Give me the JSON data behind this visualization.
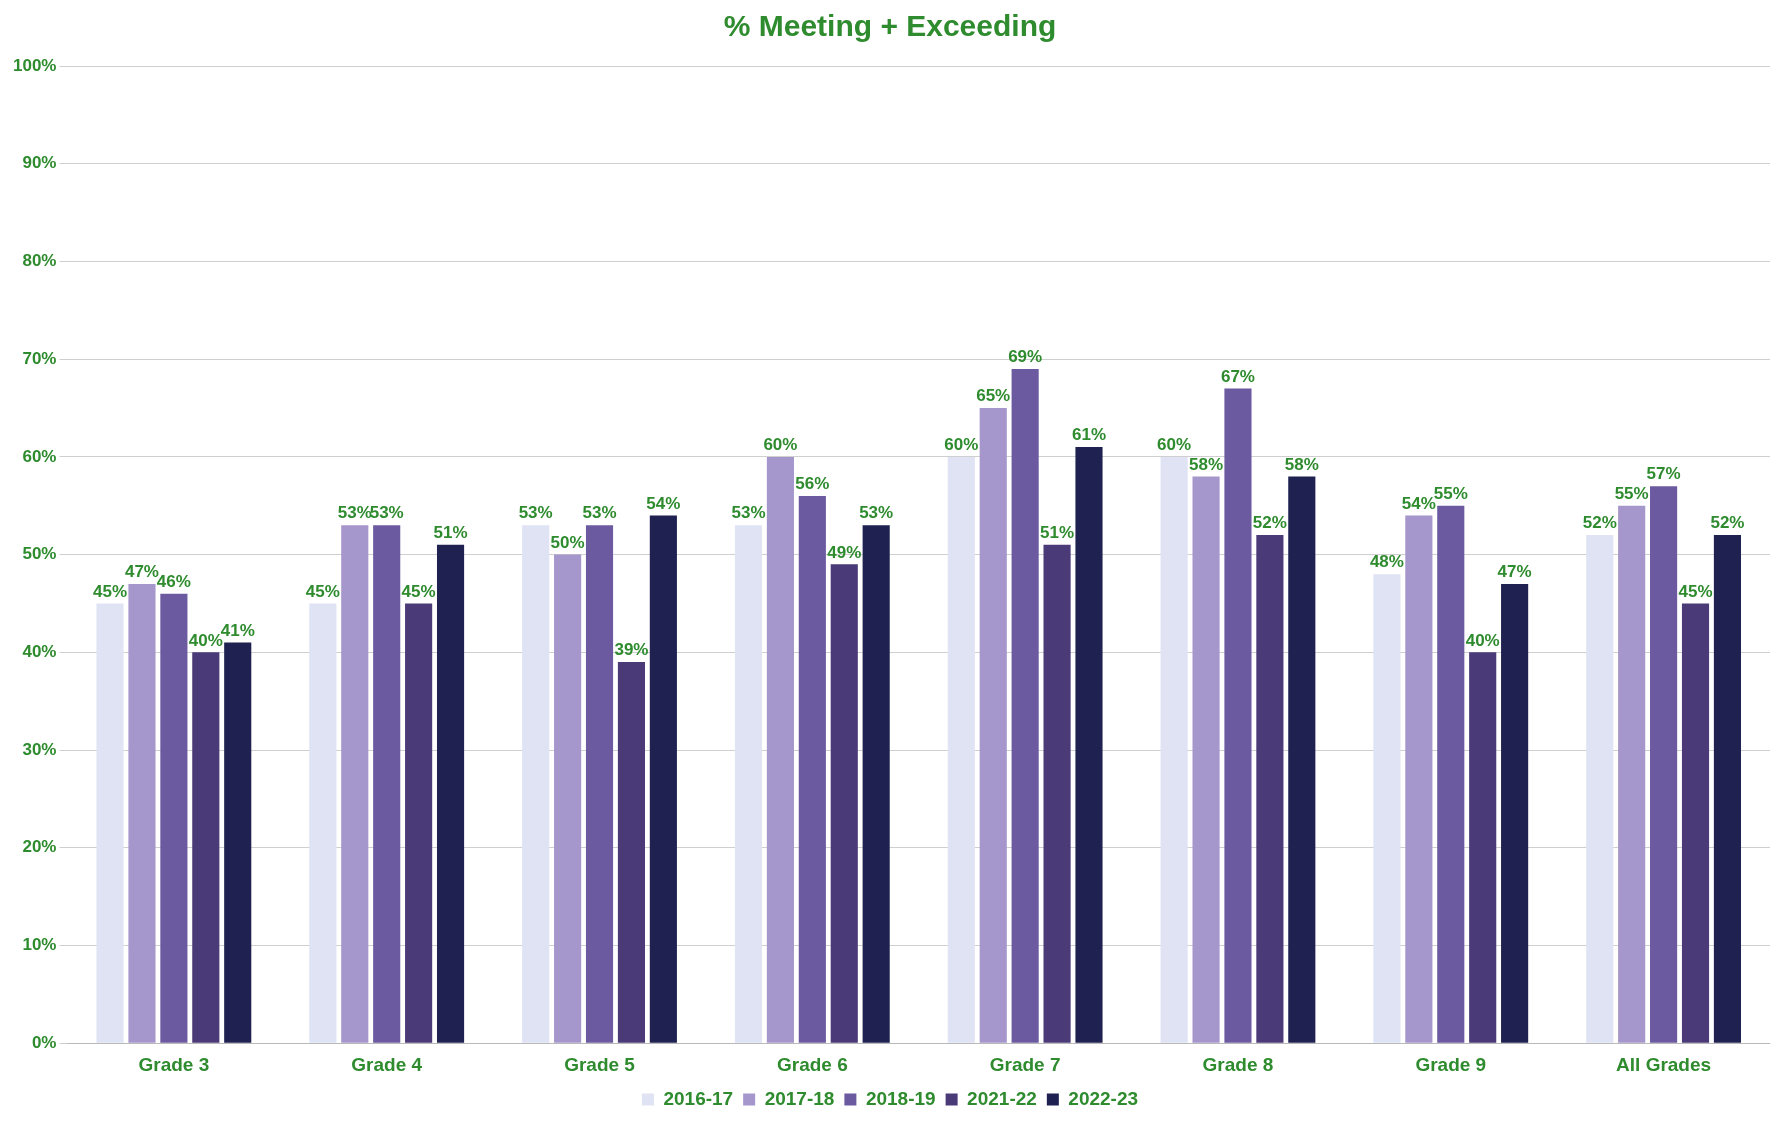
{
  "chart_data": {
    "type": "bar",
    "title": "% Meeting + Exceeding",
    "categories": [
      "Grade 3",
      "Grade 4",
      "Grade 5",
      "Grade 6",
      "Grade 7",
      "Grade 8",
      "Grade 9",
      "All Grades"
    ],
    "series": [
      {
        "name": "2016-17",
        "color": "#dfe3f3",
        "values": [
          45,
          45,
          53,
          53,
          60,
          60,
          48,
          52
        ],
        "value_labels": [
          "45%",
          "45%",
          "53%",
          "53%",
          "60%",
          "60%",
          "48%",
          "52%"
        ]
      },
      {
        "name": "2017-18",
        "color": "#a596cc",
        "values": [
          47,
          53,
          50,
          60,
          65,
          58,
          54,
          55
        ],
        "value_labels": [
          "47%",
          "53%",
          "50%",
          "60%",
          "65%",
          "58%",
          "54%",
          "55%"
        ]
      },
      {
        "name": "2018-19",
        "color": "#6b5aa0",
        "values": [
          46,
          53,
          53,
          56,
          69,
          67,
          55,
          57
        ],
        "value_labels": [
          "46%",
          "53%",
          "53%",
          "56%",
          "69%",
          "67%",
          "55%",
          "57%"
        ]
      },
      {
        "name": "2021-22",
        "color": "#4a3a78",
        "values": [
          40,
          45,
          39,
          49,
          51,
          52,
          40,
          45
        ],
        "value_labels": [
          "40%",
          "45%",
          "39%",
          "49%",
          "51%",
          "52%",
          "40%",
          "45%"
        ]
      },
      {
        "name": "2022-23",
        "color": "#1f2150",
        "values": [
          41,
          51,
          54,
          53,
          61,
          58,
          47,
          52
        ],
        "value_labels": [
          "41%",
          "51%",
          "54%",
          "53%",
          "61%",
          "58%",
          "47%",
          "52%"
        ]
      }
    ],
    "ylim": [
      0,
      100
    ],
    "yticks": [
      {
        "value": 0,
        "label": "0%"
      },
      {
        "value": 10,
        "label": "10%"
      },
      {
        "value": 20,
        "label": "20%"
      },
      {
        "value": 30,
        "label": "30%"
      },
      {
        "value": 40,
        "label": "40%"
      },
      {
        "value": 50,
        "label": "50%"
      },
      {
        "value": 60,
        "label": "60%"
      },
      {
        "value": 70,
        "label": "70%"
      },
      {
        "value": 80,
        "label": "80%"
      },
      {
        "value": 90,
        "label": "90%"
      },
      {
        "value": 100,
        "label": "100%"
      }
    ],
    "grid": "y",
    "legend": "bottom"
  }
}
